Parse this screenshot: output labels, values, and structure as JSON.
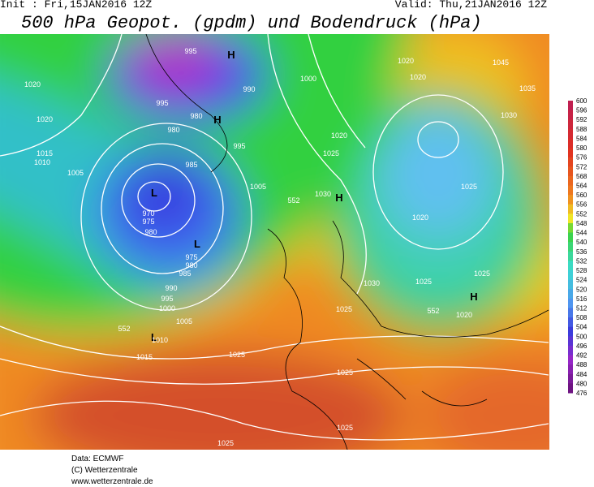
{
  "header": {
    "init": "Init : Fri,15JAN2016 12Z",
    "valid": "Valid: Thu,21JAN2016 12Z",
    "title": "500 hPa Geopot. (gpdm) und Bodendruck (hPa)"
  },
  "map": {
    "labels": [
      "995",
      "H",
      "1020",
      "995",
      "980",
      "H",
      "990",
      "1000",
      "1020",
      "1020",
      "1045",
      "1035",
      "1030",
      "1020",
      "980",
      "995",
      "1015",
      "1010",
      "1005",
      "985",
      "1020",
      "1025",
      "1005",
      "1030",
      "H",
      "552",
      "L",
      "970",
      "975",
      "980",
      "L",
      "975",
      "980",
      "985",
      "1025",
      "1020",
      "1025",
      "1025",
      "1030",
      "990",
      "995",
      "1000",
      "1025",
      "552",
      "H",
      "1020",
      "1005",
      "552",
      "L",
      "1010",
      "1015",
      "1025",
      "1025",
      "1025",
      "1025"
    ]
  },
  "colorbar": {
    "values": [
      600,
      596,
      592,
      588,
      584,
      580,
      576,
      572,
      568,
      564,
      560,
      556,
      552,
      548,
      544,
      540,
      536,
      532,
      528,
      524,
      520,
      516,
      512,
      508,
      504,
      500,
      496,
      492,
      488,
      484,
      480,
      476
    ]
  },
  "footer": [
    "Data: ECMWF",
    "(C) Wetterzentrale",
    "www.wetterzentrale.de"
  ]
}
